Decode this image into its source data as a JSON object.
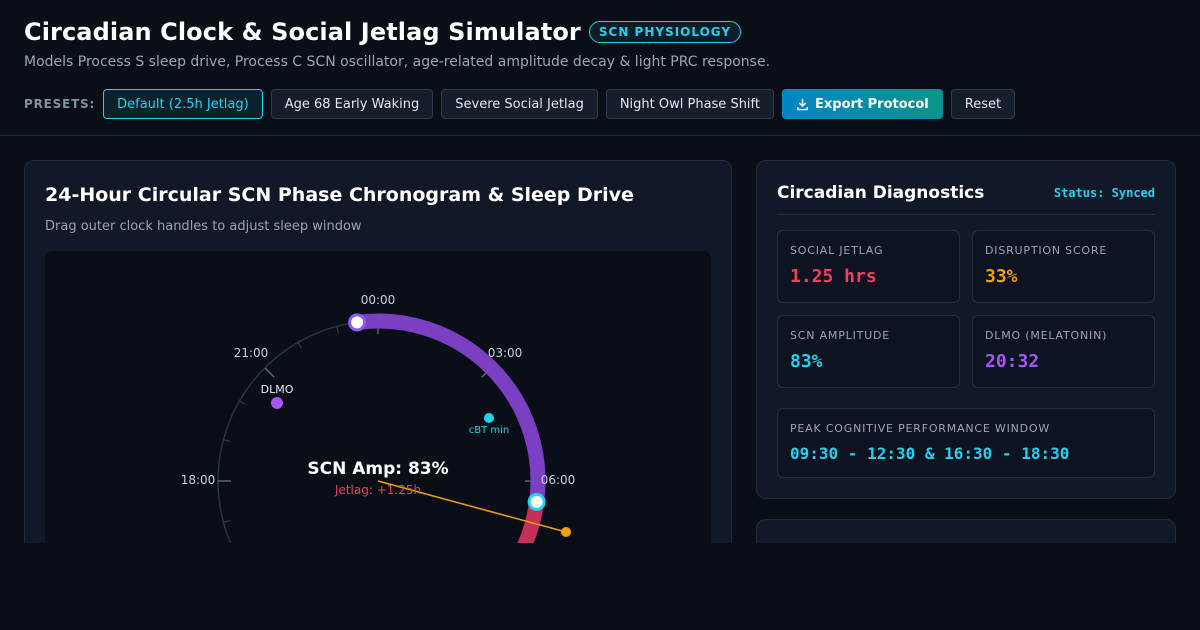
{
  "header": {
    "title": "Circadian Clock & Social Jetlag Simulator",
    "badge": "SCN PHYSIOLOGY",
    "subtitle": "Models Process S sleep drive, Process C SCN oscillator, age-related amplitude decay & light PRC response."
  },
  "presets": {
    "label": "PRESETS:",
    "items": [
      "Default (2.5h Jetlag)",
      "Age 68 Early Waking",
      "Severe Social Jetlag",
      "Night Owl Phase Shift"
    ],
    "active_index": 0,
    "export_label": "Export Protocol",
    "reset_label": "Reset"
  },
  "chronogram": {
    "title": "24-Hour Circular SCN Phase Chronogram & Sleep Drive",
    "hint": "Drag outer clock handles to adjust sleep window",
    "hour_labels": [
      "00:00",
      "03:00",
      "06:00",
      "18:00",
      "21:00"
    ],
    "center_label": "SCN Amp: 83%",
    "center_sublabel": "Jetlag: +1.25h",
    "markers": {
      "dlmo": "DLMO",
      "cbt_min": "cBT min"
    },
    "sleep_start": "23:30",
    "sleep_end": "06:30",
    "dlmo_time": "20:32",
    "cbt_min_time": "03:30",
    "colors": {
      "sleep_arc": "#7b3fc4",
      "wake_arc": "#c5305b",
      "cyan": "#22d3ee",
      "dlmo": "#a855f7",
      "phase_line": "#f59e0b"
    }
  },
  "diagnostics": {
    "title": "Circadian Diagnostics",
    "status": "Status: Synced",
    "metrics": [
      {
        "label": "SOCIAL JETLAG",
        "value": "1.25 hrs",
        "color": "#f43f5e"
      },
      {
        "label": "DISRUPTION SCORE",
        "value": "33%",
        "color": "#f59e0b"
      },
      {
        "label": "SCN AMPLITUDE",
        "value": "83%",
        "color": "#22d3ee"
      },
      {
        "label": "DLMO (MELATONIN)",
        "value": "20:32",
        "color": "#a855f7"
      }
    ],
    "peak": {
      "label": "PEAK COGNITIVE PERFORMANCE WINDOW",
      "value": "09:30 - 12:30 & 16:30 - 18:30"
    }
  }
}
